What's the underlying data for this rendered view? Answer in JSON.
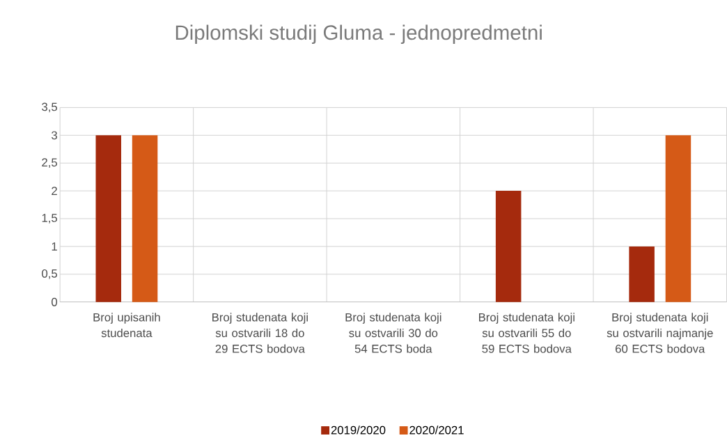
{
  "chart_data": {
    "type": "bar",
    "title": "Diplomski studij Gluma - jednopredmetni",
    "categories": [
      "Broj upisanih studenata",
      "Broj studenata koji su ostvarili 18 do 29 ECTS bodova",
      "Broj studenata koji su ostvarili 30 do 54 ECTS boda",
      "Broj studenata koji su ostvarili 55 do 59 ECTS bodova",
      "Broj studenata koji su ostvarili najmanje 60 ECTS bodova"
    ],
    "series": [
      {
        "name": "2019/2020",
        "color": "#a52a0d",
        "values": [
          3,
          0,
          0,
          2,
          1
        ]
      },
      {
        "name": "2020/2021",
        "color": "#d55a17",
        "values": [
          3,
          0,
          0,
          0,
          3
        ]
      }
    ],
    "ylim": [
      0,
      3.5
    ],
    "yticks": [
      0,
      {
        "value": 0.5,
        "label": "0,5"
      },
      1,
      {
        "value": 1.5,
        "label": "1,5"
      },
      2,
      {
        "value": 2.5,
        "label": "2,5"
      },
      3,
      {
        "value": 3.5,
        "label": "3,5"
      }
    ],
    "grid": true,
    "legend": "bottom"
  }
}
